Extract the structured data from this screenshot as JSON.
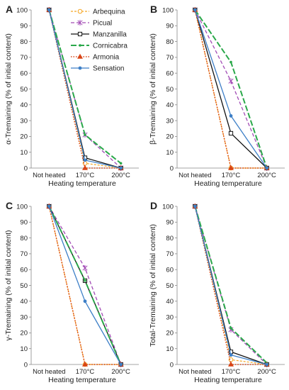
{
  "colors": {
    "arbequina": "#f5a623",
    "picual": "#a24bb5",
    "manzanilla": "#111111",
    "cornicabra": "#2aa84a",
    "armonia": "#d84315",
    "sensation": "#3d7fc7"
  },
  "chart_data": [
    {
      "panel": "A",
      "type": "line",
      "categories": [
        "Not heated",
        "170°C",
        "200°C"
      ],
      "xlabel": "Heating temperature",
      "ylabel": "α-Tremaining (% of initial content)",
      "ylim": [
        0,
        100
      ],
      "yticks": [
        0,
        10,
        20,
        30,
        40,
        50,
        60,
        70,
        80,
        90,
        100
      ],
      "legend": "top-right",
      "series": [
        {
          "name": "Arbequina",
          "values": [
            100,
            3,
            0
          ]
        },
        {
          "name": "Picual",
          "values": [
            100,
            21,
            0
          ]
        },
        {
          "name": "Manzanilla",
          "values": [
            100,
            6.5,
            0
          ]
        },
        {
          "name": "Cornicabra",
          "values": [
            100,
            21,
            3
          ]
        },
        {
          "name": "Armonia",
          "values": [
            100,
            0,
            0
          ]
        },
        {
          "name": "Sensation",
          "values": [
            100,
            5,
            0
          ]
        }
      ]
    },
    {
      "panel": "B",
      "type": "line",
      "categories": [
        "Not heated",
        "170°C",
        "200°C"
      ],
      "xlabel": "Heating temperature",
      "ylabel": "β-Tremaining (% of initial content)",
      "ylim": [
        0,
        100
      ],
      "yticks": [
        0,
        10,
        20,
        30,
        40,
        50,
        60,
        70,
        80,
        90,
        100
      ],
      "series": [
        {
          "name": "Arbequina",
          "values": [
            100,
            0,
            0
          ]
        },
        {
          "name": "Picual",
          "values": [
            100,
            55,
            0
          ]
        },
        {
          "name": "Manzanilla",
          "values": [
            100,
            22,
            0
          ]
        },
        {
          "name": "Cornicabra",
          "values": [
            100,
            67,
            0
          ]
        },
        {
          "name": "Armonia",
          "values": [
            100,
            0,
            0
          ]
        },
        {
          "name": "Sensation",
          "values": [
            100,
            33,
            0
          ]
        }
      ]
    },
    {
      "panel": "C",
      "type": "line",
      "categories": [
        "Not heated",
        "170°C",
        "200°C"
      ],
      "xlabel": "Heating temperature",
      "ylabel": "γ-Tremaining (% of initial content)",
      "ylim": [
        0,
        100
      ],
      "yticks": [
        0,
        10,
        20,
        30,
        40,
        50,
        60,
        70,
        80,
        90,
        100
      ],
      "series": [
        {
          "name": "Arbequina",
          "values": [
            100,
            0,
            0
          ]
        },
        {
          "name": "Picual",
          "values": [
            100,
            61,
            0
          ]
        },
        {
          "name": "Manzanilla",
          "values": [
            100,
            53,
            0
          ]
        },
        {
          "name": "Cornicabra",
          "values": [
            100,
            53,
            0
          ]
        },
        {
          "name": "Armonia",
          "values": [
            100,
            0,
            0
          ]
        },
        {
          "name": "Sensation",
          "values": [
            100,
            40,
            0
          ]
        }
      ]
    },
    {
      "panel": "D",
      "type": "line",
      "categories": [
        "Not heated",
        "170°C",
        "200°C"
      ],
      "xlabel": "Heating temperature",
      "ylabel": "Total-Tremaining (% of initial content)",
      "ylim": [
        0,
        100
      ],
      "yticks": [
        0,
        10,
        20,
        30,
        40,
        50,
        60,
        70,
        80,
        90,
        100
      ],
      "series": [
        {
          "name": "Arbequina",
          "values": [
            100,
            3,
            0
          ]
        },
        {
          "name": "Picual",
          "values": [
            100,
            22,
            0
          ]
        },
        {
          "name": "Manzanilla",
          "values": [
            100,
            8,
            0
          ]
        },
        {
          "name": "Cornicabra",
          "values": [
            100,
            23,
            1
          ]
        },
        {
          "name": "Armonia",
          "values": [
            100,
            0,
            0
          ]
        },
        {
          "name": "Sensation",
          "values": [
            100,
            6,
            0
          ]
        }
      ]
    }
  ]
}
